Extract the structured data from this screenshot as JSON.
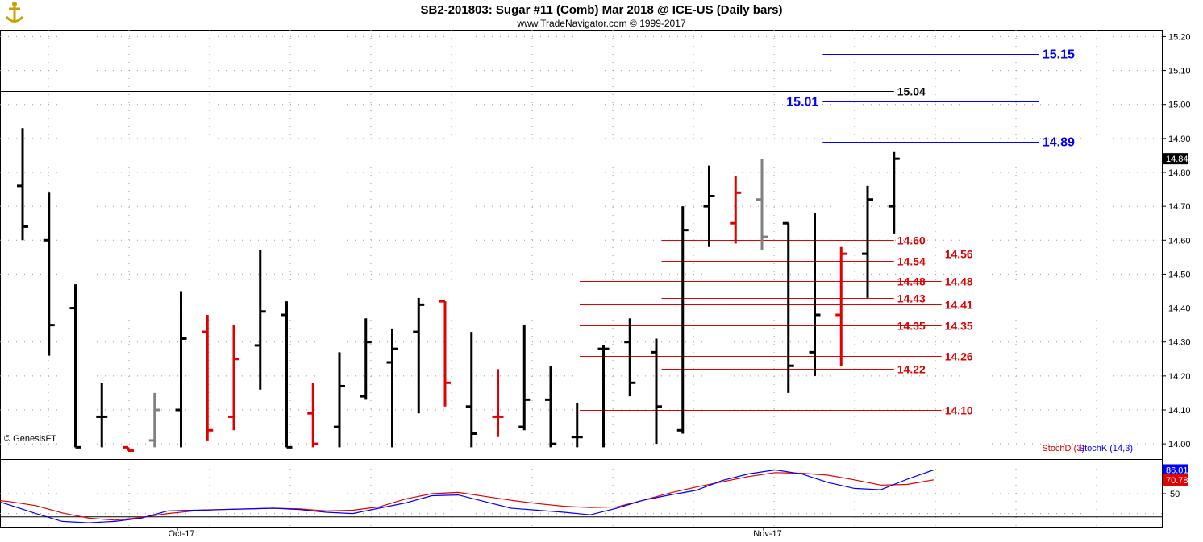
{
  "header": {
    "title": "SB2-201803:  Sugar #11 (Comb) Mar 2018 @ ICE-US  (Daily bars)",
    "subtitle": "www.TradeNavigator.com © 1999-2017"
  },
  "watermark": "© GenesisFT",
  "colors": {
    "up": "#000000",
    "down": "#e00000",
    "flat": "#808080",
    "blue": "#0000ff",
    "red": "#e00000"
  },
  "chart_data": [
    {
      "type": "ohlc",
      "ylim": [
        13.96,
        15.22
      ],
      "y_ticks": [
        "14.00",
        "14.10",
        "14.20",
        "14.30",
        "14.40",
        "14.50",
        "14.60",
        "14.70",
        "14.80",
        "14.90",
        "15.00",
        "15.10",
        "15.20"
      ],
      "x_labels": [
        "Oct-17",
        "Nov-17"
      ],
      "last_price": "14.84",
      "bars": [
        {
          "o": 14.76,
          "h": 14.93,
          "l": 14.6,
          "c": 14.64,
          "col": "up"
        },
        {
          "o": 14.6,
          "h": 14.74,
          "l": 14.26,
          "c": 14.35,
          "col": "up"
        },
        {
          "o": 14.4,
          "h": 14.47,
          "l": 13.99,
          "c": 13.99,
          "col": "up"
        },
        {
          "o": 14.08,
          "h": 14.18,
          "l": 13.99,
          "c": 14.08,
          "col": "up"
        },
        {
          "o": 13.99,
          "h": 13.99,
          "l": 13.98,
          "c": 13.98,
          "col": "down"
        },
        {
          "o": 14.01,
          "h": 14.15,
          "l": 13.99,
          "c": 14.1,
          "col": "flat"
        },
        {
          "o": 14.1,
          "h": 14.45,
          "l": 13.99,
          "c": 14.31,
          "col": "up"
        },
        {
          "o": 14.33,
          "h": 14.38,
          "l": 14.01,
          "c": 14.04,
          "col": "down"
        },
        {
          "o": 14.08,
          "h": 14.35,
          "l": 14.04,
          "c": 14.25,
          "col": "down"
        },
        {
          "o": 14.29,
          "h": 14.57,
          "l": 14.16,
          "c": 14.39,
          "col": "up"
        },
        {
          "o": 14.38,
          "h": 14.42,
          "l": 13.99,
          "c": 13.99,
          "col": "up"
        },
        {
          "o": 14.09,
          "h": 14.18,
          "l": 13.99,
          "c": 14.0,
          "col": "down"
        },
        {
          "o": 14.05,
          "h": 14.27,
          "l": 13.99,
          "c": 14.17,
          "col": "up"
        },
        {
          "o": 14.14,
          "h": 14.37,
          "l": 14.13,
          "c": 14.3,
          "col": "up"
        },
        {
          "o": 14.24,
          "h": 14.34,
          "l": 13.99,
          "c": 14.28,
          "col": "up"
        },
        {
          "o": 14.33,
          "h": 14.43,
          "l": 14.09,
          "c": 14.41,
          "col": "up"
        },
        {
          "o": 14.42,
          "h": 14.42,
          "l": 14.11,
          "c": 14.18,
          "col": "down"
        },
        {
          "o": 14.11,
          "h": 14.33,
          "l": 13.99,
          "c": 14.03,
          "col": "up"
        },
        {
          "o": 14.08,
          "h": 14.22,
          "l": 14.02,
          "c": 14.08,
          "col": "down"
        },
        {
          "o": 14.05,
          "h": 14.35,
          "l": 14.04,
          "c": 14.13,
          "col": "up"
        },
        {
          "o": 14.13,
          "h": 14.23,
          "l": 13.99,
          "c": 14.0,
          "col": "up"
        },
        {
          "o": 14.02,
          "h": 14.12,
          "l": 13.99,
          "c": 14.02,
          "col": "up"
        },
        {
          "o": 14.28,
          "h": 14.29,
          "l": 13.99,
          "c": 14.28,
          "col": "up"
        },
        {
          "o": 14.3,
          "h": 14.37,
          "l": 14.14,
          "c": 14.18,
          "col": "up"
        },
        {
          "o": 14.27,
          "h": 14.31,
          "l": 14.0,
          "c": 14.11,
          "col": "up"
        },
        {
          "o": 14.04,
          "h": 14.7,
          "l": 14.03,
          "c": 14.63,
          "col": "up"
        },
        {
          "o": 14.7,
          "h": 14.82,
          "l": 14.58,
          "c": 14.73,
          "col": "up"
        },
        {
          "o": 14.65,
          "h": 14.79,
          "l": 14.59,
          "c": 14.74,
          "col": "down"
        },
        {
          "o": 14.72,
          "h": 14.84,
          "l": 14.57,
          "c": 14.61,
          "col": "flat"
        },
        {
          "o": 14.65,
          "h": 14.65,
          "l": 14.15,
          "c": 14.23,
          "col": "up"
        },
        {
          "o": 14.27,
          "h": 14.68,
          "l": 14.2,
          "c": 14.38,
          "col": "up"
        },
        {
          "o": 14.38,
          "h": 14.58,
          "l": 14.23,
          "c": 14.56,
          "col": "down"
        },
        {
          "o": 14.56,
          "h": 14.76,
          "l": 14.43,
          "c": 14.72,
          "col": "up"
        },
        {
          "o": 14.7,
          "h": 14.86,
          "l": 14.62,
          "c": 14.84,
          "col": "up"
        }
      ],
      "levels": [
        {
          "value": 15.15,
          "label": "15.15",
          "color": "blue",
          "side": "right",
          "start": 30.3,
          "end": 38.5
        },
        {
          "value": 15.04,
          "label": "15.04",
          "color": "black",
          "side": "right",
          "start": -1,
          "end": 33.0
        },
        {
          "value": 15.01,
          "label": "15.01",
          "color": "blue",
          "side": "left",
          "start": 30.3,
          "end": 38.5
        },
        {
          "value": 14.89,
          "label": "14.89",
          "color": "blue",
          "side": "right",
          "start": 30.3,
          "end": 38.5
        },
        {
          "value": 14.6,
          "label": "14.60",
          "color": "red",
          "side": "right",
          "start": 24.2,
          "end": 33.0
        },
        {
          "value": 14.56,
          "label": "14.56",
          "color": "red",
          "side": "right",
          "start": 21.1,
          "end": 34.8
        },
        {
          "value": 14.54,
          "label": "14.54",
          "color": "red",
          "side": "right",
          "start": 24.2,
          "end": 33.0
        },
        {
          "value": 14.48,
          "label": "14.48",
          "color": "red",
          "side": "right",
          "start": 24.2,
          "end": 33.0
        },
        {
          "value": 14.48,
          "label": "14.48",
          "color": "red",
          "side": "right",
          "start": 21.1,
          "end": 34.8
        },
        {
          "value": 14.43,
          "label": "14.43",
          "color": "red",
          "side": "right",
          "start": 24.2,
          "end": 33.0
        },
        {
          "value": 14.41,
          "label": "14.41",
          "color": "red",
          "side": "right",
          "start": 21.1,
          "end": 34.8
        },
        {
          "value": 14.35,
          "label": "14.35",
          "color": "red",
          "side": "right",
          "start": 21.1,
          "end": 33.0
        },
        {
          "value": 14.35,
          "label": "14.35",
          "color": "red",
          "side": "right",
          "start": 21.1,
          "end": 34.8
        },
        {
          "value": 14.26,
          "label": "14.26",
          "color": "red",
          "side": "right",
          "start": 21.1,
          "end": 34.8
        },
        {
          "value": 14.22,
          "label": "14.22",
          "color": "red",
          "side": "right",
          "start": 24.2,
          "end": 33.0
        },
        {
          "value": 14.1,
          "label": "14.10",
          "color": "red",
          "side": "right",
          "start": 21.1,
          "end": 34.8
        }
      ]
    },
    {
      "type": "line",
      "title": "",
      "ylim": [
        0,
        100
      ],
      "y_ticks": [
        "50"
      ],
      "series": [
        {
          "name": "StochD (3)",
          "color": "red",
          "last": "70.78",
          "values": [
            42,
            38,
            32,
            21,
            13,
            10,
            14,
            20,
            24,
            26,
            27,
            28,
            27,
            24,
            25,
            30,
            42,
            50,
            52,
            46,
            40,
            35,
            31,
            29,
            30,
            40,
            51,
            60,
            68,
            76,
            82,
            81,
            78,
            71,
            63,
            64,
            71
          ]
        },
        {
          "name": "StochK (14,3)",
          "color": "blue",
          "last": "86.01",
          "values": [
            45,
            33,
            20,
            8,
            6,
            8,
            13,
            24,
            25,
            26,
            27,
            28,
            26,
            22,
            20,
            28,
            36,
            47,
            48,
            38,
            28,
            25,
            22,
            18,
            28,
            40,
            48,
            55,
            70,
            80,
            86,
            80,
            67,
            58,
            56,
            72,
            86
          ]
        }
      ]
    }
  ]
}
